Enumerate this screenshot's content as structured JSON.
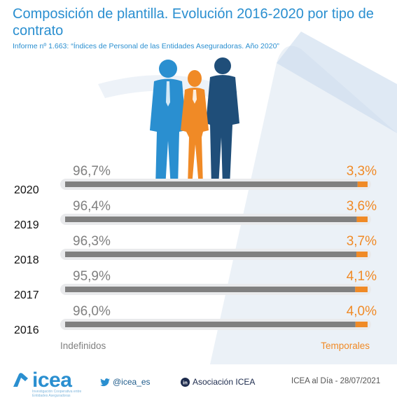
{
  "title": "Composición de plantilla. Evolución 2016-2020 por tipo de contrato",
  "subtitle": "Informe nº 1.663: “Índices de Personal de las Entidades Aseguradoras. Año 2020”",
  "colors": {
    "title": "#2a8fd0",
    "indefinidos": "#808080",
    "temporales": "#f08a26",
    "year_label": "#111111",
    "bar_track": "#e9eaec"
  },
  "chart_data": {
    "type": "bar",
    "orientation": "horizontal",
    "stacked": true,
    "categories": [
      "2020",
      "2019",
      "2018",
      "2017",
      "2016"
    ],
    "series": [
      {
        "name": "Indefinidos",
        "values": [
          96.7,
          96.4,
          96.3,
          95.9,
          96.0
        ],
        "labels": [
          "96,7%",
          "96,4%",
          "96,3%",
          "95,9%",
          "96,0%"
        ]
      },
      {
        "name": "Temporales",
        "values": [
          3.3,
          3.6,
          3.7,
          4.1,
          4.0
        ],
        "labels": [
          "3,3%",
          "3,6%",
          "3,7%",
          "4,1%",
          "4,0%"
        ]
      }
    ],
    "xlim": [
      0,
      100
    ],
    "grid": false,
    "legend": "bottom"
  },
  "footer": {
    "brand": "icea",
    "brand_tagline": "Investigación Cooperativa entre Entidades Aseguradoras",
    "twitter": "@icea_es",
    "twitter_icon": "bird-icon",
    "linkedin": "Asociación ICEA",
    "linkedin_icon": "linkedin-icon",
    "credit": "ICEA al Día - 28/07/2021"
  }
}
